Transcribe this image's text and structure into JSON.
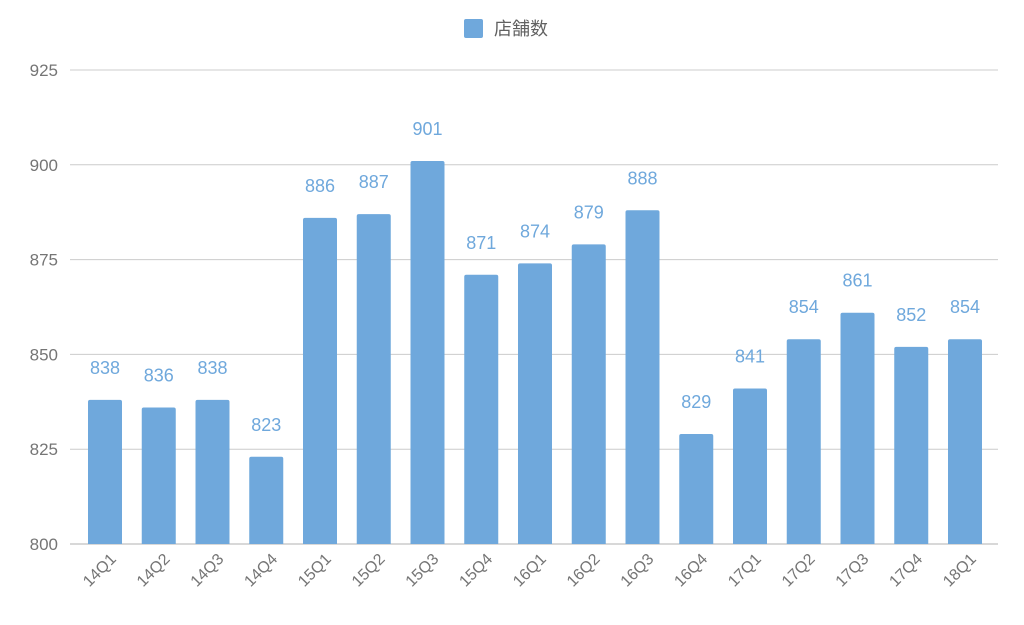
{
  "chart_data": {
    "type": "bar",
    "categories": [
      "14Q1",
      "14Q2",
      "14Q3",
      "14Q4",
      "15Q1",
      "15Q2",
      "15Q3",
      "15Q4",
      "16Q1",
      "16Q2",
      "16Q3",
      "16Q4",
      "17Q1",
      "17Q2",
      "17Q3",
      "17Q4",
      "18Q1"
    ],
    "series": [
      {
        "name": "店舗数",
        "values": [
          838,
          836,
          838,
          823,
          886,
          887,
          901,
          871,
          874,
          879,
          888,
          829,
          841,
          854,
          861,
          852,
          854
        ],
        "color": "#6fa8dc"
      }
    ],
    "ylim": [
      800,
      925
    ],
    "yticks": [
      800,
      825,
      850,
      875,
      900,
      925
    ],
    "grid": true,
    "legend_position": "top-center",
    "data_labels": true,
    "title": "",
    "xlabel": "",
    "ylabel": ""
  },
  "colors": {
    "bar": "#6fa8dc",
    "grid": "#cccccc",
    "axis_text": "#757575"
  }
}
